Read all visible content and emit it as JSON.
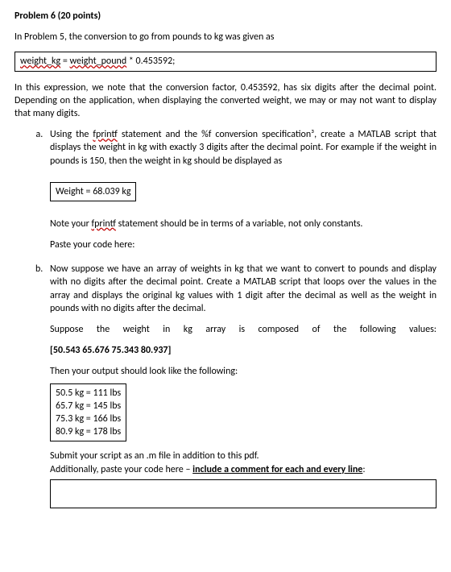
{
  "title": "Problem 6 (20 points)",
  "intro": "In Problem 5, the conversion to go from pounds to kg was given as",
  "codeLine": {
    "lhs": "weight_kg",
    "eq": " = ",
    "rhs": "weight_pound",
    "tail": " * 0.453592;"
  },
  "explain": "In this expression, we note that the conversion factor, 0.453592, has six digits after the decimal point. Depending on the application, when displaying the converted weight, we may or may not want to display that many digits.",
  "a": {
    "lead1": "Using the ",
    "fprintf": "fprintf",
    "lead2": " statement and the %f conversion specification³, create a MATLAB script that displays the weight in kg with exactly 3 digits after the decimal point. For example if the weight in pounds is 150, then the weight in kg should be displayed as",
    "box": "Weight = 68.039 kg",
    "note1": "Note your ",
    "note2": " statement should be in terms of a variable, not only constants.",
    "paste": "Paste your code here:"
  },
  "b": {
    "lead": "Now suppose we have an array of weights in kg that we want to convert to pounds and display with no digits after the decimal point. Create a MATLAB script that loops over the values in the array and displays the original kg values with 1 digit after the decimal as well as the weight in pounds with no digits after the decimal.",
    "suppose": "Suppose the weight in kg array is composed of the following values:",
    "array": "[50.543 65.676 75.343 80.937]",
    "then": "Then your output should look like the following:",
    "rows": [
      "50.5 kg = 111 lbs",
      "65.7 kg = 145 lbs",
      "75.3 kg = 166 lbs",
      "80.9 kg = 178 lbs"
    ],
    "submit": "Submit your script as an .m file in addition to this pdf.",
    "add1": "Additionally, paste your code here – ",
    "add2": "include a comment for each and every line",
    "add3": ":"
  }
}
